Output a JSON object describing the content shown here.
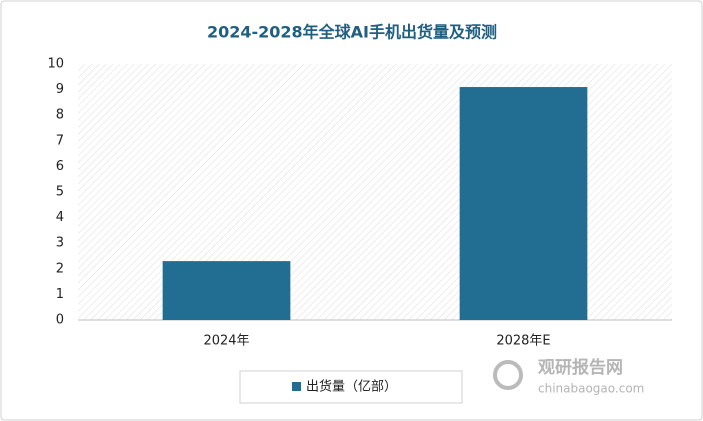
{
  "chart_data": {
    "type": "bar",
    "title": "2024-2028年全球AI手机出货量及预测",
    "categories": [
      "2024年",
      "2028年E"
    ],
    "series": [
      {
        "name": "出货量（亿部）",
        "color": "#216e92",
        "values": [
          2.3,
          9.1
        ]
      }
    ],
    "ylim": [
      0,
      10
    ],
    "yticks": [
      0,
      1,
      2,
      3,
      4,
      5,
      6,
      7,
      8,
      9,
      10
    ],
    "watermark": {
      "name": "观研报告网",
      "url": "chinabaogao.com"
    }
  }
}
